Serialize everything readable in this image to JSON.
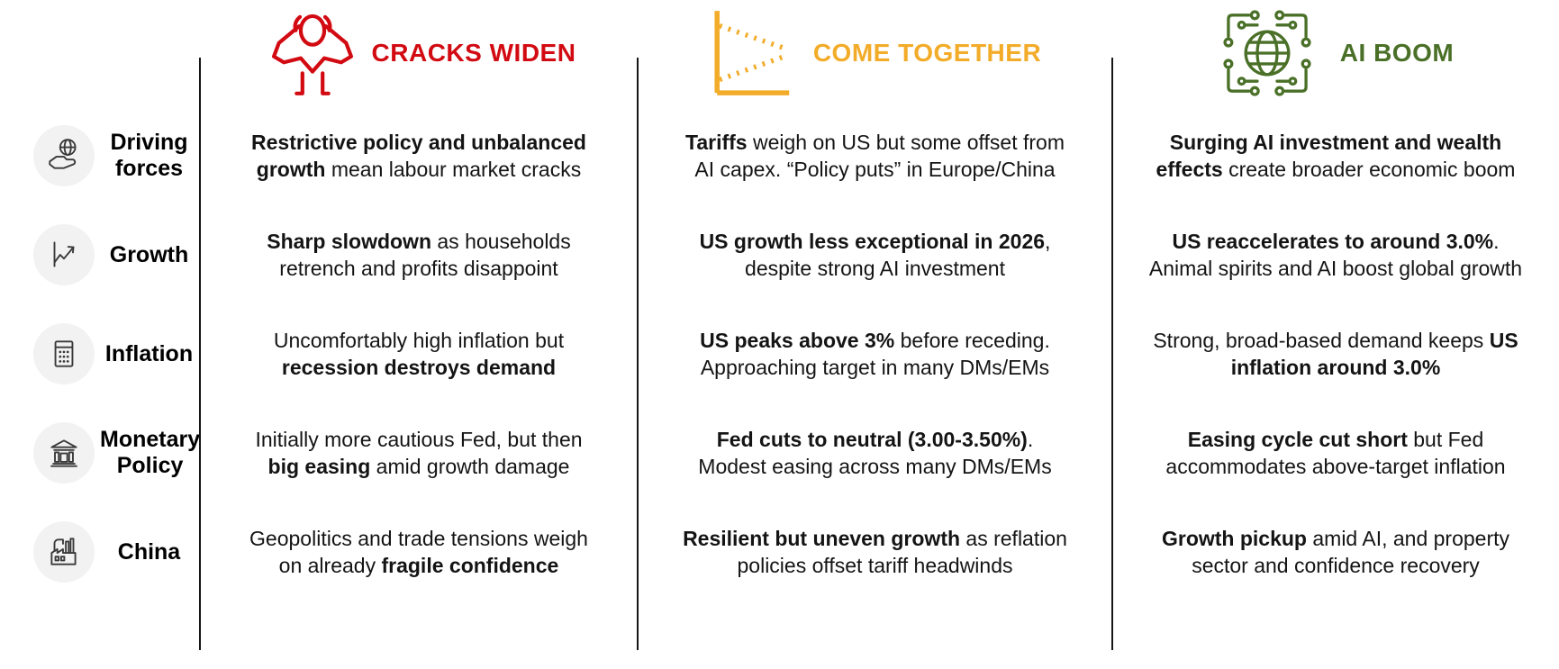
{
  "scenarios": [
    {
      "title": "CRACKS WIDEN",
      "color": "#D20A11",
      "icon": "stressed-person-icon"
    },
    {
      "title": "COME TOGETHER",
      "color": "#F2AC29",
      "icon": "converging-lines-icon"
    },
    {
      "title": "AI BOOM",
      "color": "#4A7028",
      "icon": "ai-globe-icon"
    }
  ],
  "rows": [
    {
      "label": "Driving forces",
      "icon": "globe-hand-icon",
      "cells": [
        {
          "lines": [
            [
              {
                "text": "Restrictive policy and unbalanced",
                "bold": true
              }
            ],
            [
              {
                "text": "growth",
                "bold": true
              },
              {
                "text": " mean labour market cracks",
                "bold": false
              }
            ]
          ]
        },
        {
          "lines": [
            [
              {
                "text": "Tariffs",
                "bold": true
              },
              {
                "text": " weigh on US but some offset from",
                "bold": false
              }
            ],
            [
              {
                "text": "AI capex. “Policy puts” in Europe/China",
                "bold": false
              }
            ]
          ]
        },
        {
          "lines": [
            [
              {
                "text": "Surging AI investment and wealth",
                "bold": true
              }
            ],
            [
              {
                "text": "effects",
                "bold": true
              },
              {
                "text": " create broader economic boom",
                "bold": false
              }
            ]
          ]
        }
      ]
    },
    {
      "label": "Growth",
      "icon": "chart-up-icon",
      "cells": [
        {
          "lines": [
            [
              {
                "text": "Sharp slowdown",
                "bold": true
              },
              {
                "text": " as households",
                "bold": false
              }
            ],
            [
              {
                "text": "retrench and profits disappoint",
                "bold": false
              }
            ]
          ]
        },
        {
          "lines": [
            [
              {
                "text": "US growth less exceptional in 2026",
                "bold": true
              },
              {
                "text": ",",
                "bold": false
              }
            ],
            [
              {
                "text": "despite strong AI investment",
                "bold": false
              }
            ]
          ]
        },
        {
          "lines": [
            [
              {
                "text": "US reaccelerates to around 3.0%",
                "bold": true
              },
              {
                "text": ".",
                "bold": false
              }
            ],
            [
              {
                "text": "Animal spirits and AI boost global growth",
                "bold": false
              }
            ]
          ]
        }
      ]
    },
    {
      "label": "Inflation",
      "icon": "calculator-icon",
      "cells": [
        {
          "lines": [
            [
              {
                "text": "Uncomfortably high inflation but",
                "bold": false
              }
            ],
            [
              {
                "text": "recession destroys demand",
                "bold": true
              }
            ]
          ]
        },
        {
          "lines": [
            [
              {
                "text": "US peaks above 3%",
                "bold": true
              },
              {
                "text": " before receding.",
                "bold": false
              }
            ],
            [
              {
                "text": "Approaching target in many DMs/EMs",
                "bold": false
              }
            ]
          ]
        },
        {
          "lines": [
            [
              {
                "text": "Strong, broad-based demand keeps ",
                "bold": false
              },
              {
                "text": "US",
                "bold": true
              }
            ],
            [
              {
                "text": "inflation around 3.0%",
                "bold": true
              }
            ]
          ]
        }
      ]
    },
    {
      "label": "Monetary Policy",
      "icon": "bank-icon",
      "cells": [
        {
          "lines": [
            [
              {
                "text": "Initially more cautious Fed, but then",
                "bold": false
              }
            ],
            [
              {
                "text": "big easing",
                "bold": true
              },
              {
                "text": " amid growth damage",
                "bold": false
              }
            ]
          ]
        },
        {
          "lines": [
            [
              {
                "text": "Fed cuts to neutral (3.00-3.50%)",
                "bold": true
              },
              {
                "text": ".",
                "bold": false
              }
            ],
            [
              {
                "text": "Modest easing across many DMs/EMs",
                "bold": false
              }
            ]
          ]
        },
        {
          "lines": [
            [
              {
                "text": "Easing cycle cut short",
                "bold": true
              },
              {
                "text": " but Fed",
                "bold": false
              }
            ],
            [
              {
                "text": "accommodates above-target inflation",
                "bold": false
              }
            ]
          ]
        }
      ]
    },
    {
      "label": "China",
      "icon": "factory-icon",
      "cells": [
        {
          "lines": [
            [
              {
                "text": "Geopolitics and trade tensions weigh",
                "bold": false
              }
            ],
            [
              {
                "text": "on already ",
                "bold": false
              },
              {
                "text": "fragile confidence",
                "bold": true
              }
            ]
          ]
        },
        {
          "lines": [
            [
              {
                "text": "Resilient but uneven growth",
                "bold": true
              },
              {
                "text": " as reflation",
                "bold": false
              }
            ],
            [
              {
                "text": "policies offset tariff headwinds",
                "bold": false
              }
            ]
          ]
        },
        {
          "lines": [
            [
              {
                "text": "Growth pickup",
                "bold": true
              },
              {
                "text": " amid AI, and property",
                "bold": false
              }
            ],
            [
              {
                "text": "sector and confidence recovery",
                "bold": false
              }
            ]
          ]
        }
      ]
    }
  ]
}
